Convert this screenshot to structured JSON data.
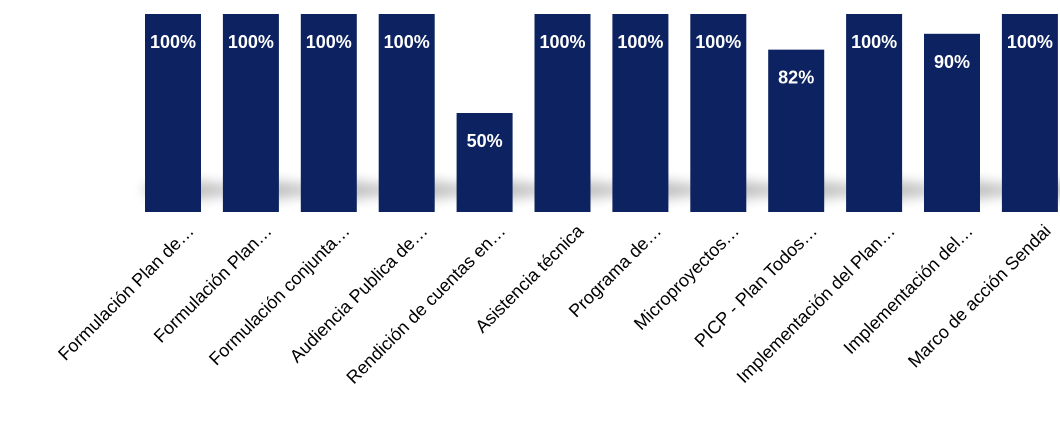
{
  "chart_data": {
    "type": "bar",
    "categories": [
      "Formulación Plan de…",
      "Formulación Plan…",
      "Formulación conjunta…",
      "Audiencia Publica de…",
      "Rendición de cuentas en…",
      "Asistencia técnica",
      "Programa de…",
      "Microproyectos…",
      "PICP - Plan Todos…",
      "Implementación del Plan…",
      "Implementación del…",
      "Marco de acción Sendai"
    ],
    "values": [
      100,
      100,
      100,
      100,
      50,
      100,
      100,
      100,
      82,
      100,
      90,
      100
    ],
    "data_labels": [
      "100%",
      "100%",
      "100%",
      "100%",
      "50%",
      "100%",
      "100%",
      "100%",
      "82%",
      "100%",
      "90%",
      "100%"
    ],
    "title": "",
    "xlabel": "",
    "ylabel": "",
    "ylim": [
      0,
      100
    ],
    "grid": false,
    "legend": "none",
    "colors": {
      "bar": "#0d2260",
      "data_label": "#ffffff",
      "category_label": "#000000",
      "shadow": "#8a8a8a"
    }
  }
}
